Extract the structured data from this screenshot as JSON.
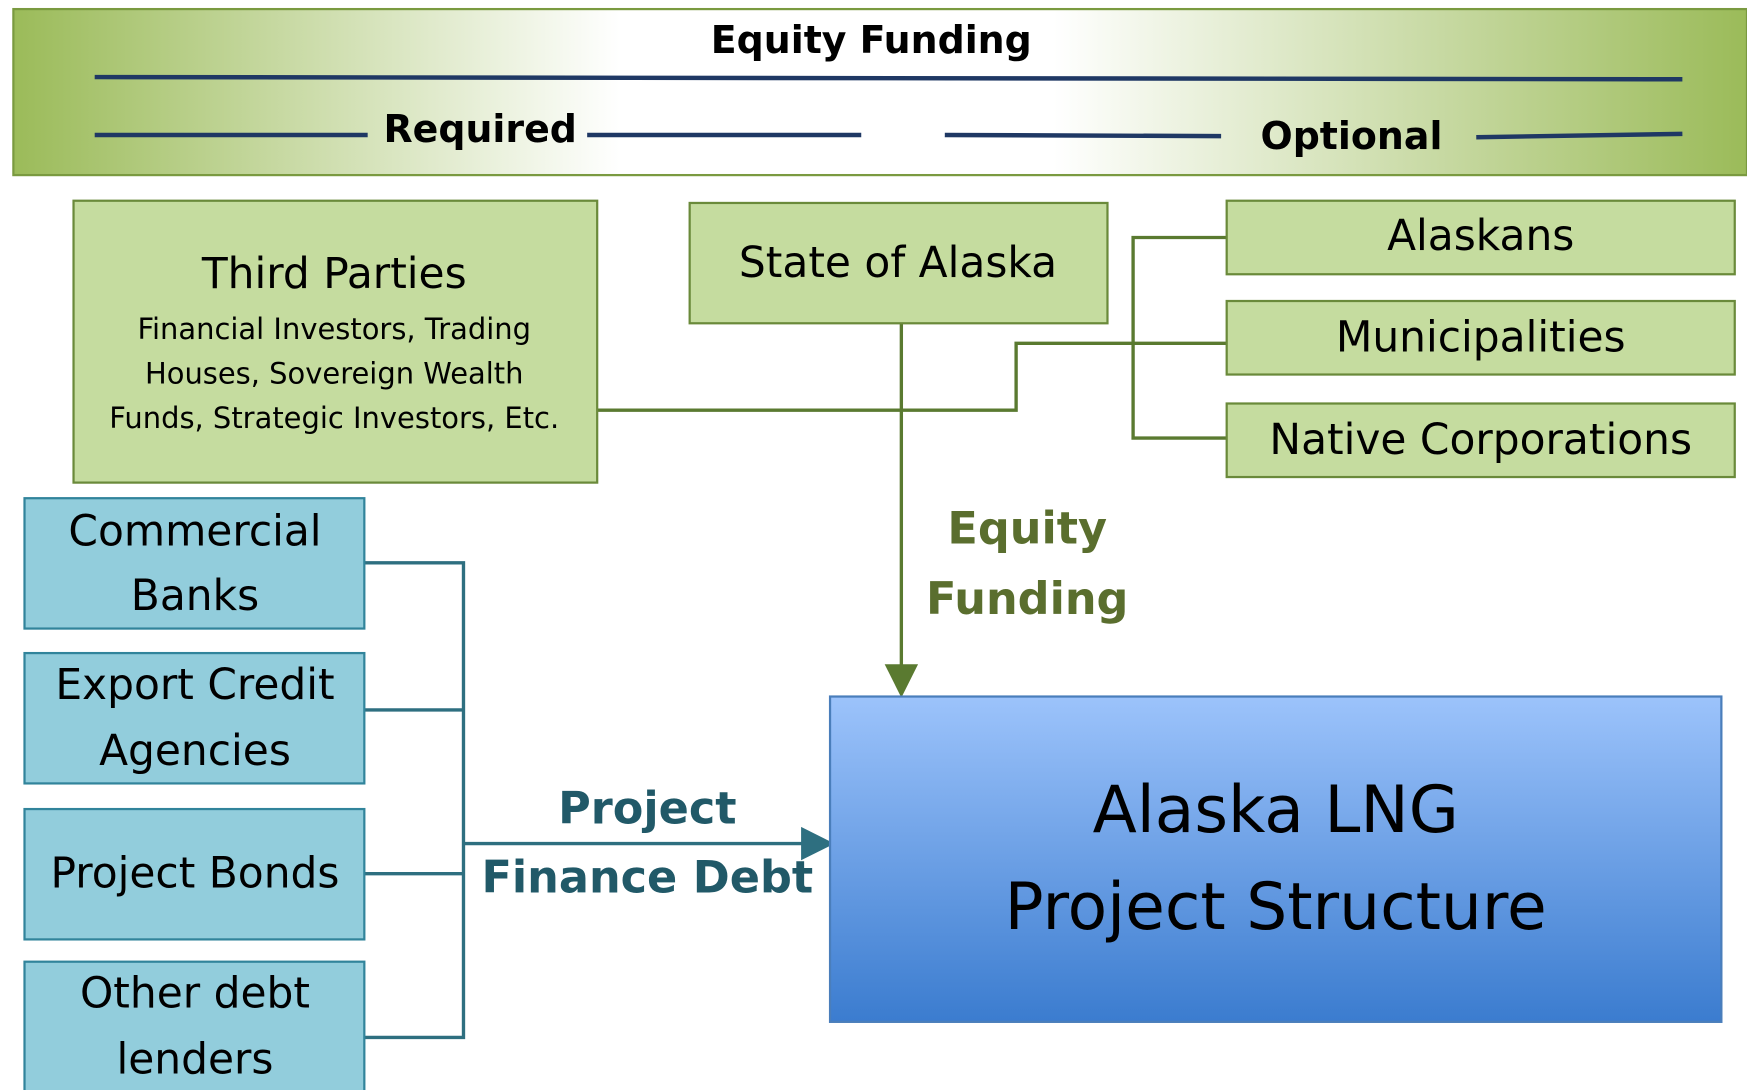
{
  "header": {
    "title": "Equity Funding",
    "required": "Required",
    "optional": "Optional"
  },
  "equity_sources": {
    "third_parties": {
      "title": "Third Parties",
      "lines": [
        "Financial Investors, Trading",
        "Houses, Sovereign Wealth",
        "Funds, Strategic Investors, Etc."
      ]
    },
    "state": "State of Alaska",
    "optional": [
      "Alaskans",
      "Municipalities",
      "Native Corporations"
    ]
  },
  "equity_label": [
    "Equity",
    "Funding"
  ],
  "debt_sources": [
    [
      "Commercial",
      "Banks"
    ],
    [
      "Export Credit",
      "Agencies"
    ],
    [
      "Project Bonds"
    ],
    [
      "Other debt",
      "lenders"
    ]
  ],
  "debt_label": [
    "Project",
    "Finance Debt"
  ],
  "project": [
    "Alaska LNG",
    "Project Structure"
  ]
}
